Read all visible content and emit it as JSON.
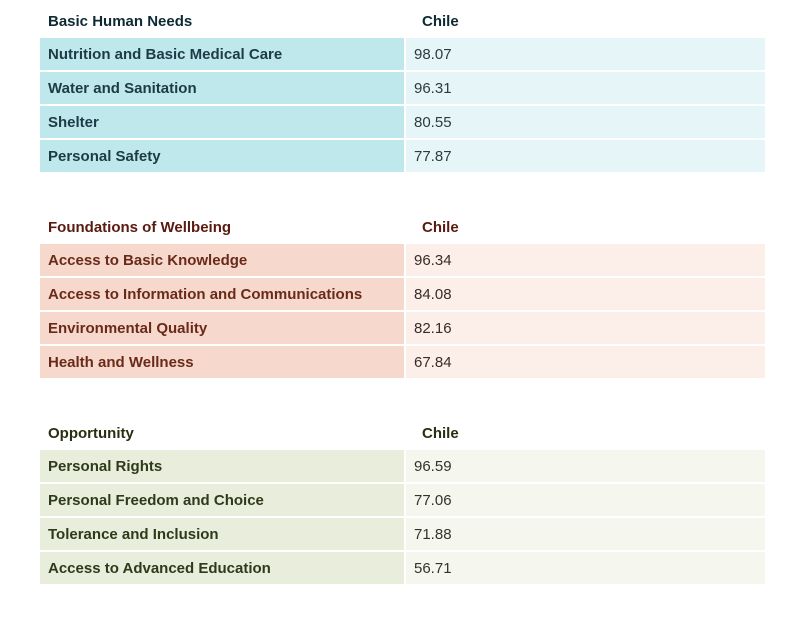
{
  "chart_data": {
    "type": "table",
    "column_header": "Chile",
    "sections": [
      {
        "title": "Basic Human Needs",
        "theme": "blue",
        "colors": {
          "label_bg": "#bfe8ec",
          "value_bg": "#e6f6f8"
        },
        "rows": [
          {
            "label": "Nutrition and Basic Medical Care",
            "value": "98.07"
          },
          {
            "label": "Water and Sanitation",
            "value": "96.31"
          },
          {
            "label": "Shelter",
            "value": "80.55"
          },
          {
            "label": "Personal Safety",
            "value": "77.87"
          }
        ]
      },
      {
        "title": "Foundations of Wellbeing",
        "theme": "red",
        "colors": {
          "label_bg": "#f6d9cc",
          "value_bg": "#fcefe9"
        },
        "rows": [
          {
            "label": "Access to Basic Knowledge",
            "value": "96.34"
          },
          {
            "label": "Access to Information and Communications",
            "value": "84.08"
          },
          {
            "label": "Environmental Quality",
            "value": "82.16"
          },
          {
            "label": "Health and Wellness",
            "value": "67.84"
          }
        ]
      },
      {
        "title": "Opportunity",
        "theme": "green",
        "colors": {
          "label_bg": "#e8eddc",
          "value_bg": "#f5f7ef"
        },
        "rows": [
          {
            "label": "Personal Rights",
            "value": "96.59"
          },
          {
            "label": "Personal Freedom and Choice",
            "value": "77.06"
          },
          {
            "label": "Tolerance and Inclusion",
            "value": "71.88"
          },
          {
            "label": "Access to Advanced Education",
            "value": "56.71"
          }
        ]
      }
    ]
  }
}
